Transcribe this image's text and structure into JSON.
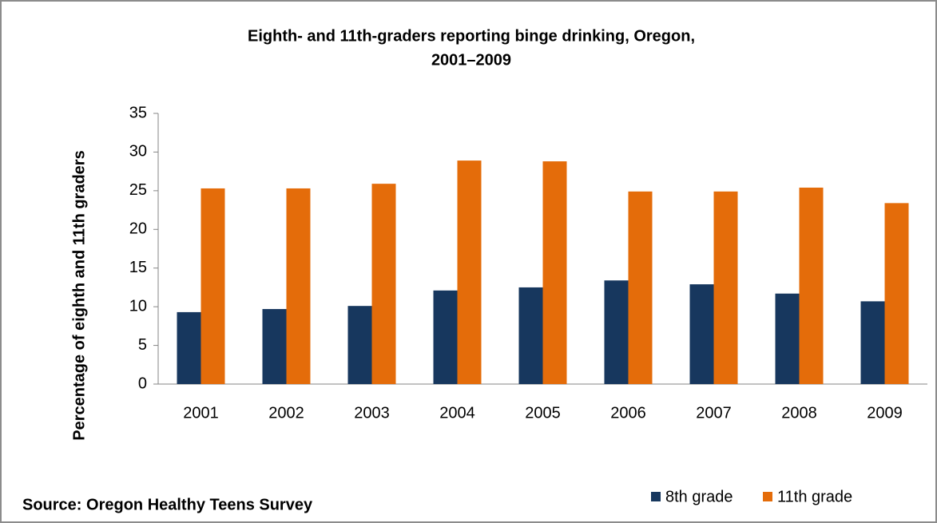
{
  "chart_data": {
    "type": "bar",
    "title": [
      "Eighth- and 11th-graders reporting binge drinking, Oregon,",
      "2001–2009"
    ],
    "y_label": "Percentage of eighth and 11th graders",
    "source": "Source: Oregon Healthy Teens Survey",
    "categories": [
      "2001",
      "2002",
      "2003",
      "2004",
      "2005",
      "2006",
      "2007",
      "2008",
      "2009"
    ],
    "series": [
      {
        "name": "8th grade",
        "color": "#17375e",
        "values": [
          9.3,
          9.7,
          10.1,
          12.1,
          12.5,
          13.4,
          12.9,
          11.7,
          10.7
        ]
      },
      {
        "name": "11th grade",
        "color": "#e46c0a",
        "values": [
          25.3,
          25.3,
          25.9,
          28.9,
          28.8,
          24.9,
          24.9,
          25.4,
          23.4
        ]
      }
    ],
    "ylim": [
      0,
      35
    ],
    "yticks": [
      0,
      5,
      10,
      15,
      20,
      25,
      30,
      35
    ],
    "grid": false,
    "legend": "bottom-right"
  }
}
